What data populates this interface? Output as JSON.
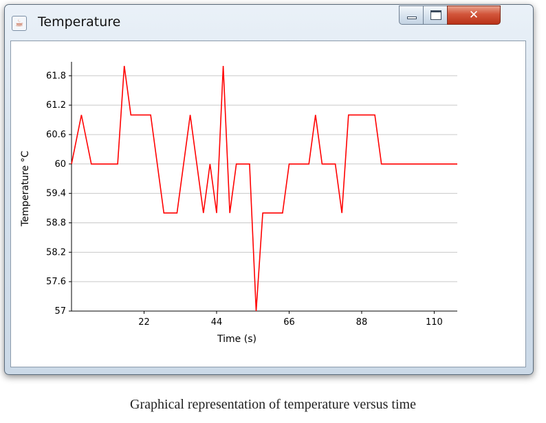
{
  "window": {
    "title": "Temperature",
    "icon": "java-cup-icon",
    "controls": {
      "minimize": "minimize-icon",
      "maximize": "maximize-icon",
      "close": "close-icon"
    }
  },
  "caption": "Graphical representation of temperature versus time",
  "chart_data": {
    "type": "line",
    "title": "",
    "xlabel": "Time (s)",
    "ylabel": "Temperature °C",
    "xlim": [
      0,
      117
    ],
    "ylim": [
      57,
      62
    ],
    "xticks": [
      22,
      44,
      66,
      88,
      110
    ],
    "yticks": [
      57,
      57.6,
      58.2,
      58.8,
      59.4,
      60,
      60.6,
      61.2,
      61.8
    ],
    "ytick_labels": [
      "57",
      "57.6",
      "58.2",
      "58.8",
      "59.4",
      "60",
      "60.6",
      "61.2",
      "61.8"
    ],
    "grid": "horizontal",
    "legend": "none",
    "line_color": "#ff0000",
    "series": [
      {
        "x": [
          0,
          3,
          6,
          8,
          10,
          12,
          14,
          16,
          18,
          20,
          22,
          24,
          26,
          28,
          30,
          32,
          34,
          36,
          38,
          40,
          42,
          44,
          46,
          48,
          50,
          52,
          54,
          56,
          58,
          60,
          62,
          64,
          66,
          68,
          70,
          72,
          74,
          76,
          78,
          80,
          82,
          84,
          86,
          88,
          90,
          92,
          94,
          96,
          98,
          100,
          102,
          104,
          106,
          108,
          110,
          112,
          114,
          117
        ],
        "y": [
          60,
          61,
          60,
          60,
          60,
          60,
          60,
          62,
          61,
          61,
          61,
          61,
          60,
          59,
          59,
          59,
          60,
          61,
          60,
          59,
          60,
          59,
          62,
          59,
          60,
          60,
          60,
          57,
          59,
          59,
          59,
          59,
          60,
          60,
          60,
          60,
          61,
          60,
          60,
          60,
          59,
          61,
          61,
          61,
          61,
          61,
          60,
          60,
          60,
          60,
          60,
          60,
          60,
          60,
          60,
          60,
          60,
          60
        ]
      }
    ]
  }
}
